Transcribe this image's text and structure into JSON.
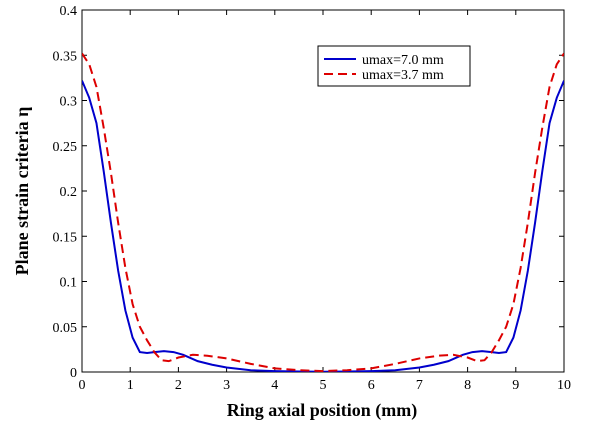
{
  "chart_data": {
    "type": "line",
    "title": "",
    "xlabel": "Ring axial position (mm)",
    "ylabel": "Plane strain criteria η",
    "xlim": [
      0,
      10
    ],
    "ylim": [
      0,
      0.4
    ],
    "xticks": [
      0,
      1,
      2,
      3,
      4,
      5,
      6,
      7,
      8,
      9,
      10
    ],
    "yticks": [
      0,
      0.05,
      0.1,
      0.15,
      0.2,
      0.25,
      0.3,
      0.35,
      0.4
    ],
    "xtick_labels": [
      "0",
      "1",
      "2",
      "3",
      "4",
      "5",
      "6",
      "7",
      "8",
      "9",
      "10"
    ],
    "ytick_labels": [
      "0",
      "0.05",
      "0.1",
      "0.15",
      "0.2",
      "0.25",
      "0.3",
      "0.35",
      "0.4"
    ],
    "grid": false,
    "legend_position": "top-right",
    "series": [
      {
        "name": "umax=7.0 mm",
        "color": "#0000cc",
        "dash": "solid",
        "x": [
          0,
          0.15,
          0.3,
          0.45,
          0.6,
          0.75,
          0.9,
          1.05,
          1.2,
          1.35,
          1.5,
          1.7,
          1.9,
          2.1,
          2.4,
          2.7,
          3.0,
          3.5,
          4.0,
          4.5,
          5.0,
          5.5,
          6.0,
          6.5,
          7.0,
          7.3,
          7.6,
          7.9,
          8.1,
          8.3,
          8.5,
          8.65,
          8.8,
          8.95,
          9.1,
          9.25,
          9.4,
          9.55,
          9.7,
          9.85,
          10
        ],
        "y": [
          0.322,
          0.303,
          0.275,
          0.222,
          0.165,
          0.112,
          0.068,
          0.038,
          0.022,
          0.021,
          0.022,
          0.023,
          0.022,
          0.019,
          0.012,
          0.008,
          0.005,
          0.002,
          0.001,
          0.0005,
          0.0003,
          0.0005,
          0.001,
          0.002,
          0.005,
          0.008,
          0.012,
          0.019,
          0.022,
          0.023,
          0.022,
          0.021,
          0.022,
          0.038,
          0.068,
          0.112,
          0.165,
          0.222,
          0.275,
          0.303,
          0.322
        ]
      },
      {
        "name": "umax=3.7 mm",
        "color": "#dd0000",
        "dash": "dashed",
        "x": [
          0,
          0.15,
          0.3,
          0.45,
          0.6,
          0.75,
          0.9,
          1.05,
          1.2,
          1.35,
          1.5,
          1.65,
          1.8,
          2.0,
          2.3,
          2.6,
          3.0,
          3.5,
          4.0,
          4.5,
          5.0,
          5.5,
          6.0,
          6.5,
          7.0,
          7.4,
          7.7,
          8.0,
          8.2,
          8.35,
          8.5,
          8.65,
          8.8,
          8.95,
          9.1,
          9.25,
          9.4,
          9.55,
          9.7,
          9.85,
          10
        ],
        "y": [
          0.352,
          0.34,
          0.315,
          0.27,
          0.22,
          0.165,
          0.115,
          0.075,
          0.05,
          0.035,
          0.022,
          0.013,
          0.012,
          0.016,
          0.019,
          0.018,
          0.015,
          0.009,
          0.004,
          0.002,
          0.001,
          0.002,
          0.004,
          0.009,
          0.015,
          0.018,
          0.019,
          0.016,
          0.012,
          0.013,
          0.022,
          0.035,
          0.05,
          0.075,
          0.115,
          0.165,
          0.22,
          0.27,
          0.315,
          0.34,
          0.352
        ]
      }
    ]
  }
}
